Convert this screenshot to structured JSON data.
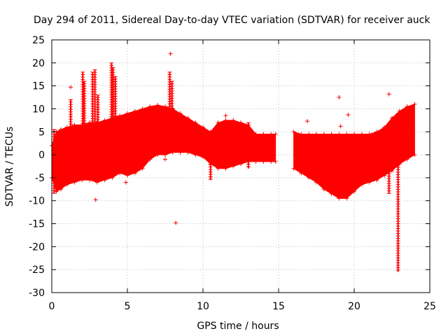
{
  "chart_data": {
    "type": "scatter",
    "title": "Day 294 of 2011, Sidereal Day-to-day VTEC variation (SDTVAR) for receiver auck",
    "xlabel": "GPS time / hours",
    "ylabel": "SDTVAR / TECUs",
    "xlim": [
      0,
      25
    ],
    "ylim": [
      -30,
      25
    ],
    "xticks": [
      0,
      5,
      10,
      15,
      20,
      25
    ],
    "yticks": [
      -30,
      -25,
      -20,
      -15,
      -10,
      -5,
      0,
      5,
      10,
      15,
      20,
      25
    ],
    "grid": true,
    "marker": "+",
    "color": "#ff0000",
    "series": [
      {
        "name": "SDTVAR",
        "segments": [
          {
            "x": [
              0.0,
              0.3,
              0.6,
              1.0,
              1.5,
              2.0,
              2.5,
              3.0,
              3.5,
              4.0,
              4.5,
              5.0,
              5.5,
              6.0,
              6.5,
              7.0,
              7.5,
              8.0,
              8.5,
              9.0,
              9.5,
              10.0,
              10.5,
              11.0,
              11.5,
              12.0,
              12.5,
              13.0,
              13.5,
              14.0,
              14.5,
              14.8
            ],
            "high": [
              2,
              5,
              5.5,
              6,
              6.5,
              6.5,
              7,
              7,
              7.5,
              8,
              8.5,
              9,
              9.5,
              10,
              10.5,
              10.8,
              10.5,
              10,
              9,
              8,
              7,
              6,
              5,
              7,
              7.5,
              7.5,
              7,
              6.5,
              4.5,
              4.5,
              4.5,
              4.5
            ],
            "low": [
              -5,
              -8,
              -7.5,
              -6.5,
              -6,
              -5.5,
              -5.5,
              -6,
              -5.5,
              -5,
              -4,
              -4.5,
              -4,
              -3,
              -1,
              0,
              0,
              0.5,
              0.5,
              0.5,
              0,
              -0.5,
              -2,
              -3,
              -3,
              -2.5,
              -2,
              -1.5,
              -1.5,
              -1.5,
              -1.5,
              -1.5
            ]
          },
          {
            "x": [
              16.0,
              16.5,
              17.0,
              17.5,
              18.0,
              18.5,
              19.0,
              19.5,
              20.0,
              20.5,
              21.0,
              21.5,
              22.0,
              22.5,
              23.0,
              23.5,
              24.0
            ],
            "high": [
              5,
              4.5,
              4.5,
              4.5,
              4.5,
              4.5,
              4.5,
              4.5,
              4.5,
              4.5,
              4.5,
              5,
              6,
              8,
              9.5,
              10.5,
              11
            ],
            "low": [
              -3,
              -4,
              -5,
              -6,
              -7.5,
              -8.5,
              -9.5,
              -9.5,
              -8,
              -6.5,
              -6,
              -5.5,
              -4.5,
              -3.5,
              -2,
              -1,
              0
            ]
          }
        ],
        "spikes": [
          {
            "x": 0.15,
            "low": -8.5,
            "high": 5.5
          },
          {
            "x": 1.25,
            "low": 6,
            "high": 12
          },
          {
            "x": 2.05,
            "low": 6,
            "high": 18
          },
          {
            "x": 2.15,
            "low": 6,
            "high": 16
          },
          {
            "x": 2.7,
            "low": 7,
            "high": 18
          },
          {
            "x": 2.85,
            "low": 7,
            "high": 18.5
          },
          {
            "x": 3.05,
            "low": 7,
            "high": 13
          },
          {
            "x": 3.95,
            "low": 8,
            "high": 20
          },
          {
            "x": 4.05,
            "low": 8,
            "high": 19
          },
          {
            "x": 4.2,
            "low": 8,
            "high": 17
          },
          {
            "x": 7.8,
            "low": 10,
            "high": 18
          },
          {
            "x": 7.95,
            "low": 10,
            "high": 16
          },
          {
            "x": 10.5,
            "low": -5.5,
            "high": 0
          },
          {
            "x": 13.0,
            "low": -3,
            "high": 7
          },
          {
            "x": 22.3,
            "low": -8.5,
            "high": -2
          },
          {
            "x": 22.9,
            "low": -25.5,
            "high": 9
          }
        ],
        "outliers": [
          {
            "x": 7.85,
            "y": 22
          },
          {
            "x": 8.2,
            "y": -14.8
          },
          {
            "x": 2.9,
            "y": -9.8
          },
          {
            "x": 1.25,
            "y": 14.7
          },
          {
            "x": 4.9,
            "y": -6
          },
          {
            "x": 7.5,
            "y": -1
          },
          {
            "x": 11.5,
            "y": 8.5
          },
          {
            "x": 16.9,
            "y": 7.3
          },
          {
            "x": 19.0,
            "y": 12.5
          },
          {
            "x": 22.3,
            "y": 13.2
          },
          {
            "x": 19.1,
            "y": 6.2
          },
          {
            "x": 19.6,
            "y": 8.7
          }
        ]
      }
    ]
  }
}
